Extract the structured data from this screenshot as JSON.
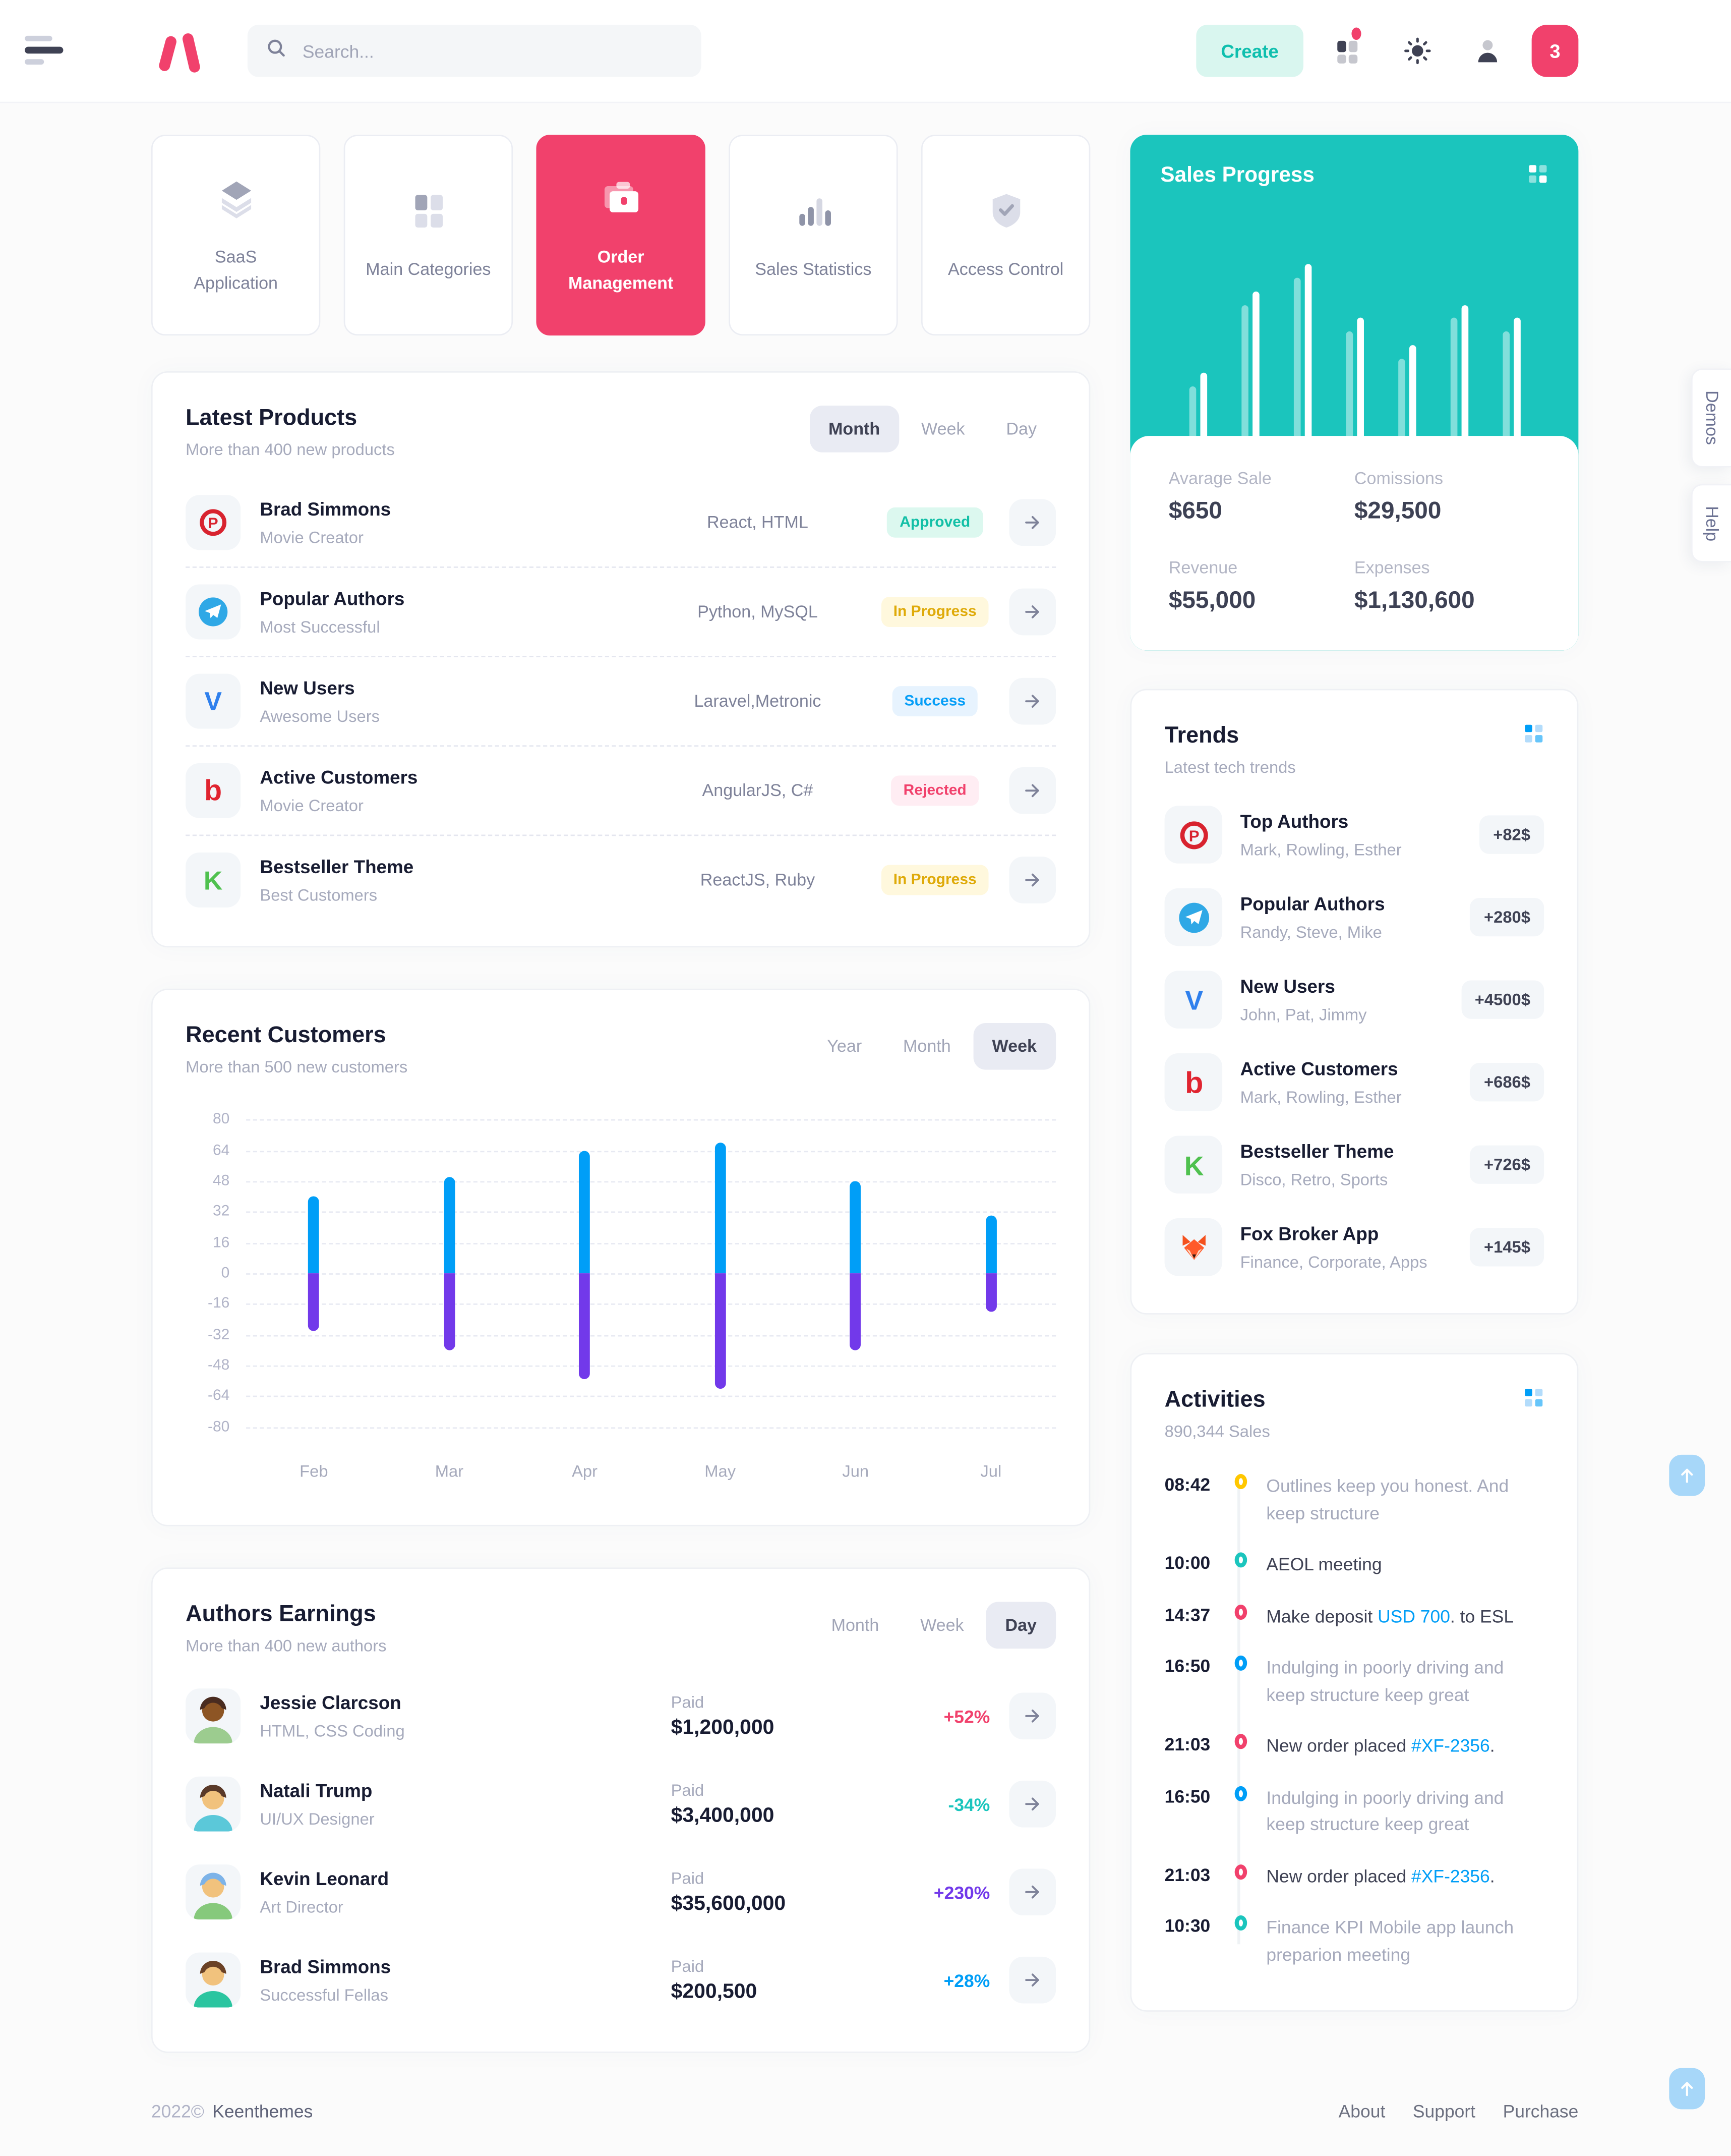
{
  "header": {
    "search_placeholder": "Search...",
    "create_label": "Create",
    "notification_count": "3"
  },
  "nav_cards": [
    {
      "label": "SaaS Application",
      "icon": "layers-icon",
      "active": false
    },
    {
      "label": "Main Categories",
      "icon": "grid-gray-icon",
      "active": false
    },
    {
      "label": "Order Management",
      "icon": "briefcase-icon",
      "active": true
    },
    {
      "label": "Sales Statistics",
      "icon": "bars-icon",
      "active": false
    },
    {
      "label": "Access Control",
      "icon": "shield-check-icon",
      "active": false
    }
  ],
  "latest_products": {
    "title": "Latest Products",
    "subtitle": "More than 400 new products",
    "toggles": [
      "Month",
      "Week",
      "Day"
    ],
    "active_toggle": 0,
    "rows": [
      {
        "icon": "plurk-icon",
        "name": "Brad Simmons",
        "role": "Movie Creator",
        "tech": "React, HTML",
        "status": {
          "label": "Approved",
          "fg": "#12bfa6",
          "bg": "#dcf8ef"
        }
      },
      {
        "icon": "telegram-icon",
        "name": "Popular Authors",
        "role": "Most Successful",
        "tech": "Python, MySQL",
        "status": {
          "label": "In Progress",
          "fg": "#dfaa09",
          "bg": "#fff8dd"
        }
      },
      {
        "icon": "vimeo-icon",
        "name": "New Users",
        "role": "Awesome Users",
        "tech": "Laravel,Metronic",
        "status": {
          "label": "Success",
          "fg": "#069ef7",
          "bg": "#e7f3fe"
        }
      },
      {
        "icon": "bing-icon",
        "name": "Active Customers",
        "role": "Movie Creator",
        "tech": "AngularJS, C#",
        "status": {
          "label": "Rejected",
          "fg": "#f1416c",
          "bg": "#ffedf3"
        }
      },
      {
        "icon": "kotlin-icon",
        "name": "Bestseller Theme",
        "role": "Best Customers",
        "tech": "ReactJS, Ruby",
        "status": {
          "label": "In Progress",
          "fg": "#dfaa09",
          "bg": "#fff8dd"
        }
      }
    ]
  },
  "recent_customers": {
    "title": "Recent Customers",
    "subtitle": "More than 500 new customers",
    "toggles": [
      "Year",
      "Month",
      "Week"
    ],
    "active_toggle": 2
  },
  "authors_earnings": {
    "title": "Authors Earnings",
    "subtitle": "More than 400 new authors",
    "toggles": [
      "Month",
      "Week",
      "Day"
    ],
    "active_toggle": 2,
    "paid_label": "Paid",
    "rows": [
      {
        "name": "Jessie Clarcson",
        "role": "HTML, CSS Coding",
        "amount": "$1,200,000",
        "pct": "+52%",
        "pct_color": "#f1416c",
        "avatar": {
          "hair": "#4a2c20",
          "skin": "#8d5524",
          "shirt": "#9ccc8f"
        }
      },
      {
        "name": "Natali Trump",
        "role": "UI/UX Designer",
        "amount": "$3,400,000",
        "pct": "-34%",
        "pct_color": "#1bc5bd",
        "avatar": {
          "hair": "#5a3a29",
          "skin": "#f1c27d",
          "shirt": "#5bc8d9"
        }
      },
      {
        "name": "Kevin Leonard",
        "role": "Art Director",
        "amount": "$35,600,000",
        "pct": "+230%",
        "pct_color": "#7239ea",
        "avatar": {
          "hair": "#7db3e8",
          "skin": "#f1c27d",
          "shirt": "#86c97c"
        }
      },
      {
        "name": "Brad Simmons",
        "role": "Successful Fellas",
        "amount": "$200,500",
        "pct": "+28%",
        "pct_color": "#009ef7",
        "avatar": {
          "hair": "#6b4226",
          "skin": "#f1c27d",
          "shirt": "#2bc5a0"
        }
      }
    ]
  },
  "sales_progress": {
    "title": "Sales Progress",
    "accent": "#1bc5bd",
    "stats": [
      {
        "label": "Avarage Sale",
        "value": "$650"
      },
      {
        "label": "Comissions",
        "value": "$29,500"
      },
      {
        "label": "Revenue",
        "value": "$55,000"
      },
      {
        "label": "Expenses",
        "value": "$1,130,600"
      }
    ]
  },
  "trends": {
    "title": "Trends",
    "subtitle": "Latest tech trends",
    "items": [
      {
        "icon": "plurk-icon",
        "name": "Top Authors",
        "sub": "Mark, Rowling, Esther",
        "badge": "+82$"
      },
      {
        "icon": "telegram-icon",
        "name": "Popular Authors",
        "sub": "Randy, Steve, Mike",
        "badge": "+280$"
      },
      {
        "icon": "vimeo-icon",
        "name": "New Users",
        "sub": "John, Pat, Jimmy",
        "badge": "+4500$"
      },
      {
        "icon": "bing-icon",
        "name": "Active Customers",
        "sub": "Mark, Rowling, Esther",
        "badge": "+686$"
      },
      {
        "icon": "kotlin-icon",
        "name": "Bestseller Theme",
        "sub": "Disco, Retro, Sports",
        "badge": "+726$"
      },
      {
        "icon": "fox-icon",
        "name": "Fox Broker App",
        "sub": "Finance, Corporate, Apps",
        "badge": "+145$"
      }
    ]
  },
  "activities": {
    "title": "Activities",
    "subtitle": "890,344 Sales",
    "items": [
      {
        "time": "08:42",
        "color": "#ffc700",
        "muted": true,
        "text_pre": "Outlines keep you honest. And keep structure"
      },
      {
        "time": "10:00",
        "color": "#1bc5bd",
        "muted": false,
        "text_pre": "AEOL meeting"
      },
      {
        "time": "14:37",
        "color": "#f1416c",
        "muted": false,
        "text_pre": "Make deposit ",
        "link": "USD 700",
        "text_post": ". to ESL"
      },
      {
        "time": "16:50",
        "color": "#009ef7",
        "muted": true,
        "text_pre": "Indulging in poorly driving and keep structure keep great"
      },
      {
        "time": "21:03",
        "color": "#f1416c",
        "muted": false,
        "text_pre": "New order placed ",
        "link": "#XF-2356",
        "text_post": "."
      },
      {
        "time": "16:50",
        "color": "#009ef7",
        "muted": true,
        "text_pre": "Indulging in poorly driving and keep structure keep great"
      },
      {
        "time": "21:03",
        "color": "#f1416c",
        "muted": false,
        "text_pre": "New order placed ",
        "link": "#XF-2356",
        "text_post": "."
      },
      {
        "time": "10:30",
        "color": "#1bc5bd",
        "muted": true,
        "text_pre": "Finance KPI Mobile app launch preparion meeting"
      }
    ]
  },
  "side_tabs": [
    "Demos",
    "Help"
  ],
  "footer": {
    "copyright": "2022©",
    "brand": "Keenthemes",
    "links": [
      "About",
      "Support",
      "Purchase"
    ]
  },
  "chart_data": [
    {
      "id": "recent_customers",
      "type": "bar",
      "title": "Recent Customers",
      "categories": [
        "Feb",
        "Mar",
        "Apr",
        "May",
        "Jun",
        "Jul"
      ],
      "series": [
        {
          "name": "positive",
          "color": "#009ef7",
          "values": [
            40,
            50,
            64,
            68,
            48,
            30
          ]
        },
        {
          "name": "negative",
          "color": "#7239ea",
          "values": [
            -30,
            -40,
            -55,
            -60,
            -40,
            -20
          ]
        }
      ],
      "ylim": [
        -80,
        80
      ],
      "yticks": [
        80,
        64,
        48,
        32,
        16,
        0,
        -16,
        -32,
        -48,
        -64,
        -80
      ],
      "grid": "dashed",
      "legend": "none"
    },
    {
      "id": "sales_progress",
      "type": "bar",
      "title": "Sales Progress",
      "unit": "percent-of-max",
      "series": [
        {
          "name": "previous",
          "color": "rgba(255,255,255,0.45)",
          "values": [
            37,
            79,
            93,
            65,
            51,
            72,
            65
          ]
        },
        {
          "name": "current",
          "color": "#ffffff",
          "values": [
            44,
            86,
            100,
            72,
            58,
            79,
            72
          ]
        }
      ],
      "axis": "none",
      "legend": "none"
    }
  ]
}
